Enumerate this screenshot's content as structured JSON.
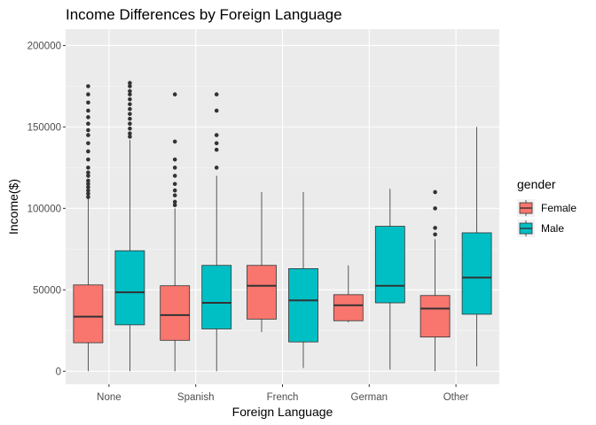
{
  "chart_data": {
    "type": "boxplot",
    "title": "Income Differences by Foreign Language",
    "xlabel": "Foreign Language",
    "ylabel": "Income($)",
    "categories": [
      "None",
      "Spanish",
      "French",
      "German",
      "Other"
    ],
    "ylim": [
      -8000,
      210000
    ],
    "yticks": [
      0,
      50000,
      100000,
      150000,
      200000
    ],
    "ytick_labels": [
      "0",
      "50000",
      "100000",
      "150000",
      "200000"
    ],
    "grid": true,
    "legend": {
      "title": "gender",
      "position": "right"
    },
    "series": [
      {
        "name": "Female",
        "color": "#F8766D",
        "boxes": [
          {
            "min": 0,
            "q1": 17500,
            "median": 33500,
            "q3": 53000,
            "max": 106000,
            "outliers": [
              107000,
              109000,
              111000,
              113000,
              115000,
              117000,
              120000,
              122000,
              125000,
              130000,
              135000,
              140000,
              145000,
              148000,
              152000,
              156000,
              160000,
              165000,
              170000,
              175000
            ]
          },
          {
            "min": 0,
            "q1": 19000,
            "median": 34500,
            "q3": 52500,
            "max": 100000,
            "outliers": [
              102000,
              104000,
              108000,
              111000,
              115000,
              120000,
              125000,
              130000,
              141000,
              170000
            ]
          },
          {
            "min": 24000,
            "q1": 32000,
            "median": 52500,
            "q3": 65000,
            "max": 110000,
            "outliers": []
          },
          {
            "min": 30000,
            "q1": 31000,
            "median": 40500,
            "q3": 47000,
            "max": 65000,
            "outliers": []
          },
          {
            "min": 0,
            "q1": 21000,
            "median": 38500,
            "q3": 46500,
            "max": 81000,
            "outliers": [
              84000,
              88000,
              100000,
              110000
            ]
          }
        ]
      },
      {
        "name": "Male",
        "color": "#00BFC4",
        "boxes": [
          {
            "min": 0,
            "q1": 28500,
            "median": 48500,
            "q3": 74000,
            "max": 142000,
            "outliers": [
              144000,
              146000,
              149000,
              152000,
              155000,
              158000,
              161000,
              164000,
              167000,
              170000,
              172000,
              175000,
              177000
            ]
          },
          {
            "min": 0,
            "q1": 26000,
            "median": 42000,
            "q3": 65000,
            "max": 120000,
            "outliers": [
              125000,
              136000,
              140000,
              145000,
              160000,
              170000
            ]
          },
          {
            "min": 2000,
            "q1": 18000,
            "median": 43500,
            "q3": 63000,
            "max": 110000,
            "outliers": []
          },
          {
            "min": 1000,
            "q1": 42000,
            "median": 52500,
            "q3": 89000,
            "max": 112000,
            "outliers": []
          },
          {
            "min": 3000,
            "q1": 35000,
            "median": 57500,
            "q3": 85000,
            "max": 150000,
            "outliers": []
          }
        ]
      }
    ]
  }
}
